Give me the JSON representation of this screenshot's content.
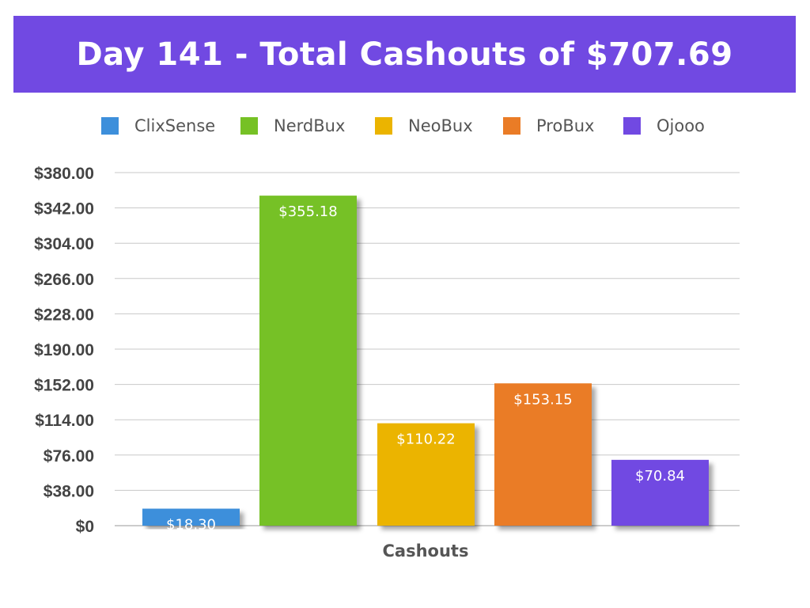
{
  "chart_data": {
    "type": "bar",
    "title": "Day 141 - Total Cashouts of $707.69",
    "xlabel": "Cashouts",
    "ylabel": "",
    "ylim": [
      0,
      380
    ],
    "yticks": [
      0,
      38,
      76,
      114,
      152,
      190,
      228,
      266,
      304,
      342,
      380
    ],
    "ytick_labels": [
      "$0",
      "$38.00",
      "$76.00",
      "$114.00",
      "$152.00",
      "$190.00",
      "$228.00",
      "$266.00",
      "$304.00",
      "$342.00",
      "$380.00"
    ],
    "categories": [
      "Cashouts"
    ],
    "series": [
      {
        "name": "ClixSense",
        "values": [
          18.3
        ],
        "label": "$18.30",
        "color": "#3D8FDB"
      },
      {
        "name": "NerdBux",
        "values": [
          355.18
        ],
        "label": "$355.18",
        "color": "#76C125"
      },
      {
        "name": "NeoBux",
        "values": [
          110.22
        ],
        "label": "$110.22",
        "color": "#EBB400"
      },
      {
        "name": "ProBux",
        "values": [
          153.15
        ],
        "label": "$153.15",
        "color": "#EA7C26"
      },
      {
        "name": "Ojooo",
        "values": [
          70.84
        ],
        "label": "$70.84",
        "color": "#7149E2"
      }
    ],
    "grid": true,
    "legend_position": "top"
  }
}
